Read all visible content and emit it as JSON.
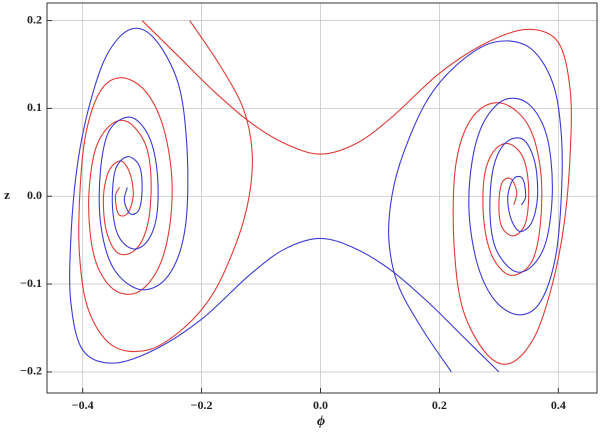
{
  "chart_data": {
    "type": "line",
    "x_label": "ϕ",
    "y_label": "z",
    "xlim": [
      -0.46,
      0.465
    ],
    "ylim": [
      -0.224,
      0.22
    ],
    "xticks": [
      {
        "value": -0.4,
        "label": "−0.4"
      },
      {
        "value": -0.2,
        "label": "−0.2"
      },
      {
        "value": 0,
        "label": "0.0"
      },
      {
        "value": 0.2,
        "label": "0.2"
      },
      {
        "value": 0.4,
        "label": "0.4"
      }
    ],
    "yticks": [
      {
        "value": -0.2,
        "label": "−0.2"
      },
      {
        "value": -0.1,
        "label": "−0.1"
      },
      {
        "value": 0,
        "label": "0.0"
      },
      {
        "value": 0.1,
        "label": "0.1"
      },
      {
        "value": 0.2,
        "label": "0.2"
      }
    ],
    "grid": true,
    "series": [
      {
        "color": "#e03a34",
        "x": [
          -0.22,
          -0.17,
          -0.13,
          -0.115,
          -0.12,
          -0.14,
          -0.18,
          -0.23,
          -0.29,
          -0.35,
          -0.39,
          -0.405,
          -0.405,
          -0.395,
          -0.37,
          -0.335,
          -0.295,
          -0.265,
          -0.25,
          -0.255,
          -0.275,
          -0.31,
          -0.35,
          -0.38,
          -0.39,
          -0.38,
          -0.355,
          -0.325,
          -0.295,
          -0.285,
          -0.29,
          -0.31,
          -0.34,
          -0.36,
          -0.365,
          -0.355,
          -0.335,
          -0.32,
          -0.315,
          -0.325,
          -0.34,
          -0.345,
          -0.338
        ],
        "values": [
          0.2,
          0.15,
          0.1,
          0.05,
          0.0,
          -0.05,
          -0.11,
          -0.15,
          -0.175,
          -0.17,
          -0.13,
          -0.07,
          0.0,
          0.07,
          0.12,
          0.135,
          0.12,
          0.08,
          0.02,
          -0.04,
          -0.085,
          -0.11,
          -0.105,
          -0.07,
          -0.01,
          0.05,
          0.08,
          0.085,
          0.06,
          0.02,
          -0.03,
          -0.06,
          -0.065,
          -0.04,
          0.0,
          0.03,
          0.04,
          0.025,
          0.0,
          -0.02,
          -0.02,
          0.0,
          0.01
        ]
      },
      {
        "color": "#e03a34",
        "x": [
          -0.3,
          -0.24,
          -0.18,
          -0.12,
          -0.06,
          0,
          0.06,
          0.12,
          0.2,
          0.28,
          0.35,
          0.4,
          0.42,
          0.42,
          0.41,
          0.39,
          0.36,
          0.32,
          0.28,
          0.24,
          0.225,
          0.225,
          0.24,
          0.27,
          0.31,
          0.35,
          0.37,
          0.37,
          0.355,
          0.32,
          0.29,
          0.275,
          0.275,
          0.29,
          0.315,
          0.34,
          0.35,
          0.345,
          0.325,
          0.305,
          0.3,
          0.305,
          0.32,
          0.33,
          0.325
        ],
        "values": [
          0.2,
          0.16,
          0.12,
          0.085,
          0.06,
          0.048,
          0.06,
          0.09,
          0.14,
          0.175,
          0.19,
          0.175,
          0.12,
          0.05,
          -0.03,
          -0.1,
          -0.16,
          -0.19,
          -0.18,
          -0.13,
          -0.06,
          0.02,
          0.07,
          0.1,
          0.105,
          0.08,
          0.03,
          -0.03,
          -0.075,
          -0.09,
          -0.07,
          -0.03,
          0.02,
          0.05,
          0.06,
          0.045,
          0.01,
          -0.03,
          -0.045,
          -0.035,
          -0.01,
          0.015,
          0.02,
          0.005,
          -0.01
        ]
      },
      {
        "color": "#3a3ad4",
        "x": [
          0.22,
          0.17,
          0.13,
          0.115,
          0.12,
          0.14,
          0.18,
          0.23,
          0.29,
          0.35,
          0.39,
          0.405,
          0.405,
          0.395,
          0.37,
          0.335,
          0.295,
          0.265,
          0.25,
          0.255,
          0.275,
          0.31,
          0.35,
          0.38,
          0.39,
          0.38,
          0.355,
          0.325,
          0.295,
          0.285,
          0.29,
          0.31,
          0.34,
          0.36,
          0.365,
          0.355,
          0.335,
          0.32,
          0.315,
          0.325,
          0.34,
          0.345,
          0.338
        ],
        "values": [
          -0.2,
          -0.15,
          -0.1,
          -0.05,
          0.0,
          0.05,
          0.11,
          0.15,
          0.175,
          0.17,
          0.13,
          0.07,
          0.0,
          -0.07,
          -0.12,
          -0.135,
          -0.12,
          -0.08,
          -0.02,
          0.04,
          0.085,
          0.11,
          0.105,
          0.07,
          0.01,
          -0.05,
          -0.08,
          -0.085,
          -0.06,
          -0.02,
          0.03,
          0.06,
          0.065,
          0.04,
          0.0,
          -0.03,
          -0.04,
          -0.025,
          0.0,
          0.02,
          0.02,
          0.0,
          -0.01
        ]
      },
      {
        "color": "#3a3ad4",
        "x": [
          0.3,
          0.24,
          0.18,
          0.12,
          0.06,
          0,
          -0.06,
          -0.12,
          -0.2,
          -0.28,
          -0.35,
          -0.4,
          -0.42,
          -0.42,
          -0.41,
          -0.39,
          -0.36,
          -0.32,
          -0.28,
          -0.24,
          -0.225,
          -0.225,
          -0.24,
          -0.27,
          -0.31,
          -0.35,
          -0.37,
          -0.37,
          -0.355,
          -0.32,
          -0.29,
          -0.275,
          -0.275,
          -0.29,
          -0.315,
          -0.34,
          -0.35,
          -0.345,
          -0.325,
          -0.305,
          -0.3,
          -0.305,
          -0.32,
          -0.33,
          -0.325
        ],
        "values": [
          -0.2,
          -0.16,
          -0.12,
          -0.085,
          -0.06,
          -0.048,
          -0.06,
          -0.09,
          -0.14,
          -0.175,
          -0.19,
          -0.175,
          -0.12,
          -0.05,
          0.03,
          0.1,
          0.16,
          0.19,
          0.18,
          0.13,
          0.06,
          -0.02,
          -0.07,
          -0.1,
          -0.105,
          -0.08,
          -0.03,
          0.03,
          0.075,
          0.09,
          0.07,
          0.03,
          -0.02,
          -0.05,
          -0.06,
          -0.045,
          -0.01,
          0.03,
          0.045,
          0.035,
          0.01,
          -0.015,
          -0.02,
          -0.005,
          0.01
        ]
      }
    ]
  }
}
